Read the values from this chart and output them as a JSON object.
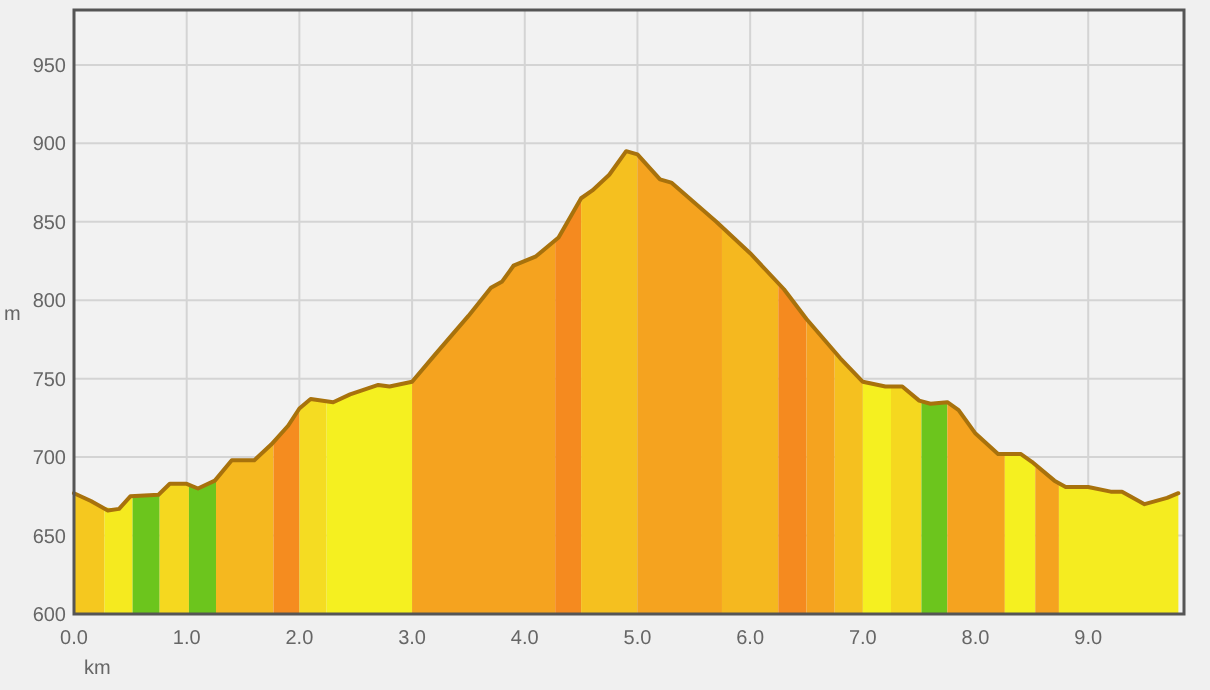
{
  "chart_data": {
    "type": "area",
    "xlabel": "km",
    "ylabel": "m",
    "xlim": [
      0,
      9.85
    ],
    "ylim": [
      600,
      985
    ],
    "xticks": [
      {
        "value": 0,
        "label": "0.0"
      },
      {
        "value": 1,
        "label": "1.0"
      },
      {
        "value": 2,
        "label": "2.0"
      },
      {
        "value": 3,
        "label": "3.0"
      },
      {
        "value": 4,
        "label": "4.0"
      },
      {
        "value": 5,
        "label": "5.0"
      },
      {
        "value": 6,
        "label": "6.0"
      },
      {
        "value": 7,
        "label": "7.0"
      },
      {
        "value": 8,
        "label": "8.0"
      },
      {
        "value": 9,
        "label": "9.0"
      }
    ],
    "yticks": [
      600,
      650,
      700,
      750,
      800,
      850,
      900,
      950
    ],
    "grid": true,
    "series": [
      {
        "color": "#f5c81f",
        "x": [
          0,
          0.15,
          0.27
        ],
        "values": [
          677,
          672,
          668
        ]
      },
      {
        "color": "#f5ea1f",
        "x": [
          0.27,
          0.4,
          0.52
        ],
        "values": [
          668,
          667,
          675
        ]
      },
      {
        "color": "#6cc51d",
        "x": [
          0.52,
          0.76
        ],
        "values": [
          675,
          676
        ]
      },
      {
        "color": "#f5d81f",
        "x": [
          0.76,
          0.85,
          1.0,
          1.02
        ],
        "values": [
          676,
          683,
          683,
          683
        ]
      },
      {
        "color": "#6cc51d",
        "x": [
          1.02,
          1.1,
          1.26
        ],
        "values": [
          683,
          680,
          685
        ]
      },
      {
        "color": "#f5b81f",
        "x": [
          1.26,
          1.4,
          1.6,
          1.77
        ],
        "values": [
          685,
          698,
          698,
          710
        ]
      },
      {
        "color": "#f58c1f",
        "x": [
          1.77,
          1.9,
          2.0
        ],
        "values": [
          710,
          720,
          731
        ]
      },
      {
        "color": "#f5dc22",
        "x": [
          2.0,
          2.1,
          2.24
        ],
        "values": [
          731,
          737,
          736
        ]
      },
      {
        "color": "#f5f020",
        "x": [
          2.24,
          2.3,
          2.45,
          2.7,
          2.8,
          3.0
        ],
        "values": [
          736,
          735,
          740,
          746,
          745,
          748
        ]
      },
      {
        "color": "#f5a31f",
        "x": [
          3.0,
          3.2,
          3.5,
          3.7,
          3.8,
          3.9,
          4.1,
          4.27
        ],
        "values": [
          748,
          765,
          790,
          808,
          812,
          822,
          828,
          838
        ]
      },
      {
        "color": "#f58a1f",
        "x": [
          4.27,
          4.5
        ],
        "values": [
          838,
          865
        ]
      },
      {
        "color": "#f5c01f",
        "x": [
          4.5,
          4.6,
          4.75,
          4.9,
          5.0
        ],
        "values": [
          865,
          870,
          880,
          895,
          893
        ]
      },
      {
        "color": "#f5a31f",
        "x": [
          5.0,
          5.2,
          5.3,
          5.75
        ],
        "values": [
          893,
          877,
          875,
          848
        ]
      },
      {
        "color": "#f5b81f",
        "x": [
          5.75,
          6.0,
          6.25
        ],
        "values": [
          848,
          830,
          810
        ]
      },
      {
        "color": "#f58a1f",
        "x": [
          6.25,
          6.5
        ],
        "values": [
          810,
          788
        ]
      },
      {
        "color": "#f5a31f",
        "x": [
          6.5,
          6.75
        ],
        "values": [
          788,
          767
        ]
      },
      {
        "color": "#f5c01f",
        "x": [
          6.75,
          7.0
        ],
        "values": [
          767,
          748
        ]
      },
      {
        "color": "#f5f020",
        "x": [
          7.0,
          7.2,
          7.25
        ],
        "values": [
          748,
          745,
          745
        ]
      },
      {
        "color": "#f5d81f",
        "x": [
          7.25,
          7.35,
          7.52
        ],
        "values": [
          745,
          745,
          736
        ]
      },
      {
        "color": "#6cc51d",
        "x": [
          7.52,
          7.6,
          7.75
        ],
        "values": [
          736,
          734,
          735
        ]
      },
      {
        "color": "#f5a31f",
        "x": [
          7.75,
          7.85,
          8.0,
          8.2,
          8.26
        ],
        "values": [
          735,
          730,
          715,
          702,
          702
        ]
      },
      {
        "color": "#f5f020",
        "x": [
          8.26,
          8.4,
          8.53
        ],
        "values": [
          702,
          702,
          696
        ]
      },
      {
        "color": "#f5a31f",
        "x": [
          8.53,
          8.7,
          8.74
        ],
        "values": [
          696,
          685,
          683
        ]
      },
      {
        "color": "#f5ec20",
        "x": [
          8.74,
          8.8,
          9.0,
          9.2,
          9.3,
          9.5,
          9.7,
          9.8
        ],
        "values": [
          683,
          681,
          681,
          678,
          678,
          670,
          674,
          677
        ]
      },
      {
        "type": "line",
        "color": "#a8720c",
        "x": [
          0,
          0.15,
          0.3,
          0.4,
          0.5,
          0.75,
          0.85,
          1.0,
          1.1,
          1.25,
          1.4,
          1.6,
          1.75,
          1.9,
          2.0,
          2.1,
          2.3,
          2.45,
          2.7,
          2.8,
          3.0,
          3.2,
          3.5,
          3.7,
          3.8,
          3.9,
          4.1,
          4.3,
          4.5,
          4.6,
          4.75,
          4.9,
          5.0,
          5.2,
          5.3,
          5.7,
          6.0,
          6.3,
          6.5,
          6.8,
          7.0,
          7.2,
          7.35,
          7.5,
          7.6,
          7.75,
          7.85,
          8.0,
          8.2,
          8.4,
          8.5,
          8.7,
          8.8,
          9.0,
          9.2,
          9.3,
          9.5,
          9.7,
          9.8
        ],
        "values": [
          677,
          672,
          666,
          667,
          675,
          676,
          683,
          683,
          680,
          685,
          698,
          698,
          708,
          720,
          731,
          737,
          735,
          740,
          746,
          745,
          748,
          765,
          790,
          808,
          812,
          822,
          828,
          840,
          865,
          870,
          880,
          895,
          893,
          877,
          875,
          850,
          830,
          807,
          788,
          763,
          748,
          745,
          745,
          736,
          734,
          735,
          730,
          715,
          702,
          702,
          697,
          685,
          681,
          681,
          678,
          678,
          670,
          674,
          677
        ]
      }
    ]
  }
}
